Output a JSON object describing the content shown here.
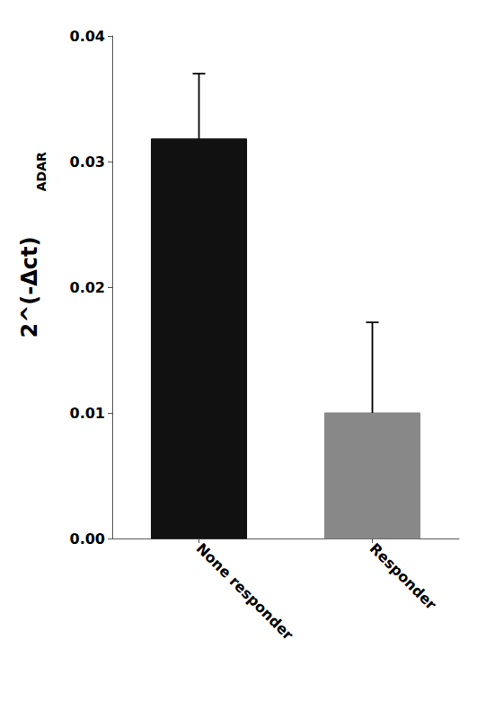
{
  "chart_data": {
    "type": "bar",
    "categories": [
      "None responder",
      "Responder"
    ],
    "values": [
      0.0318,
      0.01
    ],
    "errors_upper": [
      0.0052,
      0.0072
    ],
    "colors": [
      "#111111",
      "#888888"
    ],
    "ylabel": "2^(-Δct)",
    "annotations": [
      "ADAR"
    ],
    "ylim": [
      0,
      0.04
    ],
    "yticks": [
      {
        "value": 0,
        "label": "0.00"
      },
      0.01,
      0.02,
      0.03,
      0.04
    ],
    "grid": false
  }
}
